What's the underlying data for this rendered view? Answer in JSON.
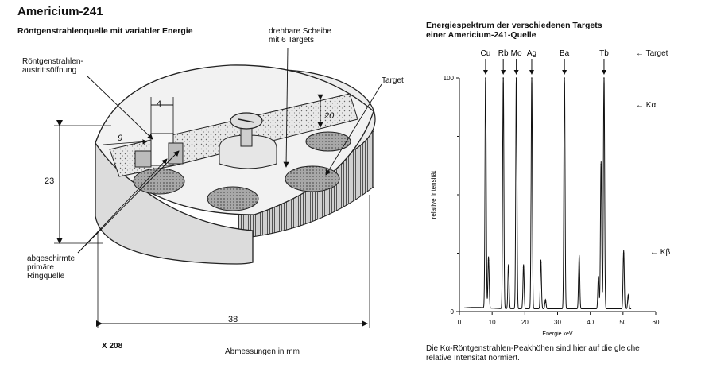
{
  "left": {
    "title": "Americium-241",
    "subtitle": "Röntgenstrahlenquelle mit variabler Energie",
    "labels": {
      "window_line1": "Röntgenstrahlen-",
      "window_line2": "austrittsöffnung",
      "disc_line1": "drehbare Scheibe",
      "disc_line2": "mit 6 Targets",
      "target": "Target",
      "ring_line1": "abgeschirmte",
      "ring_line2": "primäre",
      "ring_line3": "Ringquelle"
    },
    "dimensions": {
      "d4": "4",
      "d9": "9",
      "d20": "20",
      "d23": "23",
      "d38": "38"
    },
    "model": "X 208",
    "units_note": "Abmessungen in mm"
  },
  "right": {
    "title_line1": "Energiespektrum der verschiedenen Targets",
    "title_line2": "einer Americium-241-Quelle",
    "target_marker": "Target",
    "ka_marker": "Kα",
    "kb_marker": "Kβ",
    "caption_line1": "Die Kα-Röntgenstrahlen-Peakhöhen sind hier auf die gleiche",
    "caption_line2": "relative Intensität normiert."
  },
  "chart_data": {
    "type": "line",
    "title": "Energiespektrum der verschiedenen Targets einer Americium-241-Quelle",
    "xlabel": "Energie keV",
    "ylabel": "relative Intensität",
    "xlim": [
      0,
      60
    ],
    "ylim": [
      0,
      100
    ],
    "xticks": [
      0,
      10,
      20,
      30,
      40,
      50,
      60
    ],
    "yticks": [
      0,
      100
    ],
    "targets": [
      {
        "name": "Cu",
        "ka_keV": 8.0
      },
      {
        "name": "Rb",
        "ka_keV": 13.4
      },
      {
        "name": "Mo",
        "ka_keV": 17.4
      },
      {
        "name": "Ag",
        "ka_keV": 22.1
      },
      {
        "name": "Ba",
        "ka_keV": 32.1
      },
      {
        "name": "Tb",
        "ka_keV": 44.2
      }
    ],
    "peaks": [
      {
        "x": 8.0,
        "y": 100
      },
      {
        "x": 8.9,
        "y": 22
      },
      {
        "x": 13.4,
        "y": 100
      },
      {
        "x": 15.0,
        "y": 19
      },
      {
        "x": 17.4,
        "y": 100
      },
      {
        "x": 19.6,
        "y": 19
      },
      {
        "x": 22.1,
        "y": 100
      },
      {
        "x": 24.9,
        "y": 21
      },
      {
        "x": 26.3,
        "y": 4
      },
      {
        "x": 32.1,
        "y": 100
      },
      {
        "x": 36.6,
        "y": 23
      },
      {
        "x": 42.5,
        "y": 14
      },
      {
        "x": 43.3,
        "y": 63
      },
      {
        "x": 44.2,
        "y": 100
      },
      {
        "x": 50.2,
        "y": 25
      },
      {
        "x": 51.6,
        "y": 6
      }
    ],
    "grid": false,
    "legend": "none"
  }
}
